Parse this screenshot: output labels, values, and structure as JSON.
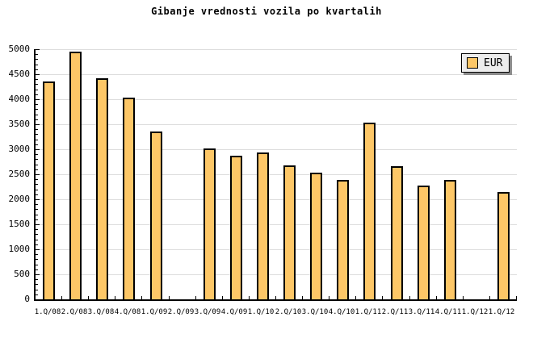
{
  "title": "Gibanje vrednosti vozila po kvartalih",
  "legend": {
    "label": "EUR"
  },
  "colors": {
    "background": "#ffffff",
    "bar_fill": "#fdc767",
    "bar_border": "#000000",
    "gridline": "#dcdcdc",
    "axis": "#000000",
    "legend_bg": "#ededed",
    "legend_shadow": "#8c8c8c"
  },
  "chart_data": {
    "type": "bar",
    "title": "Gibanje vrednosti vozila po kvartalih",
    "categories": [
      "1.Q/08",
      "2.Q/08",
      "3.Q/08",
      "4.Q/08",
      "1.Q/09",
      "2.Q/09",
      "3.Q/09",
      "4.Q/09",
      "1.Q/10",
      "2.Q/10",
      "3.Q/10",
      "4.Q/10",
      "1.Q/11",
      "2.Q/11",
      "3.Q/11",
      "4.Q/11",
      "1.Q/12",
      "1.Q/12"
    ],
    "series": [
      {
        "name": "EUR",
        "values": [
          4350,
          4950,
          4420,
          4030,
          3350,
          null,
          3020,
          2870,
          2940,
          2670,
          2540,
          2390,
          3530,
          2660,
          2270,
          2390,
          null,
          2150
        ]
      }
    ],
    "xlabel": "",
    "ylabel": "",
    "ylim": [
      0,
      5000
    ],
    "ytick_major": 500,
    "ytick_minor": 100,
    "ytick_labels": [
      "0",
      "500",
      "1000",
      "1500",
      "2000",
      "2500",
      "3000",
      "3500",
      "4000",
      "4500",
      "5000"
    ],
    "grid": "horizontal-major",
    "legend_position": "top-right"
  }
}
